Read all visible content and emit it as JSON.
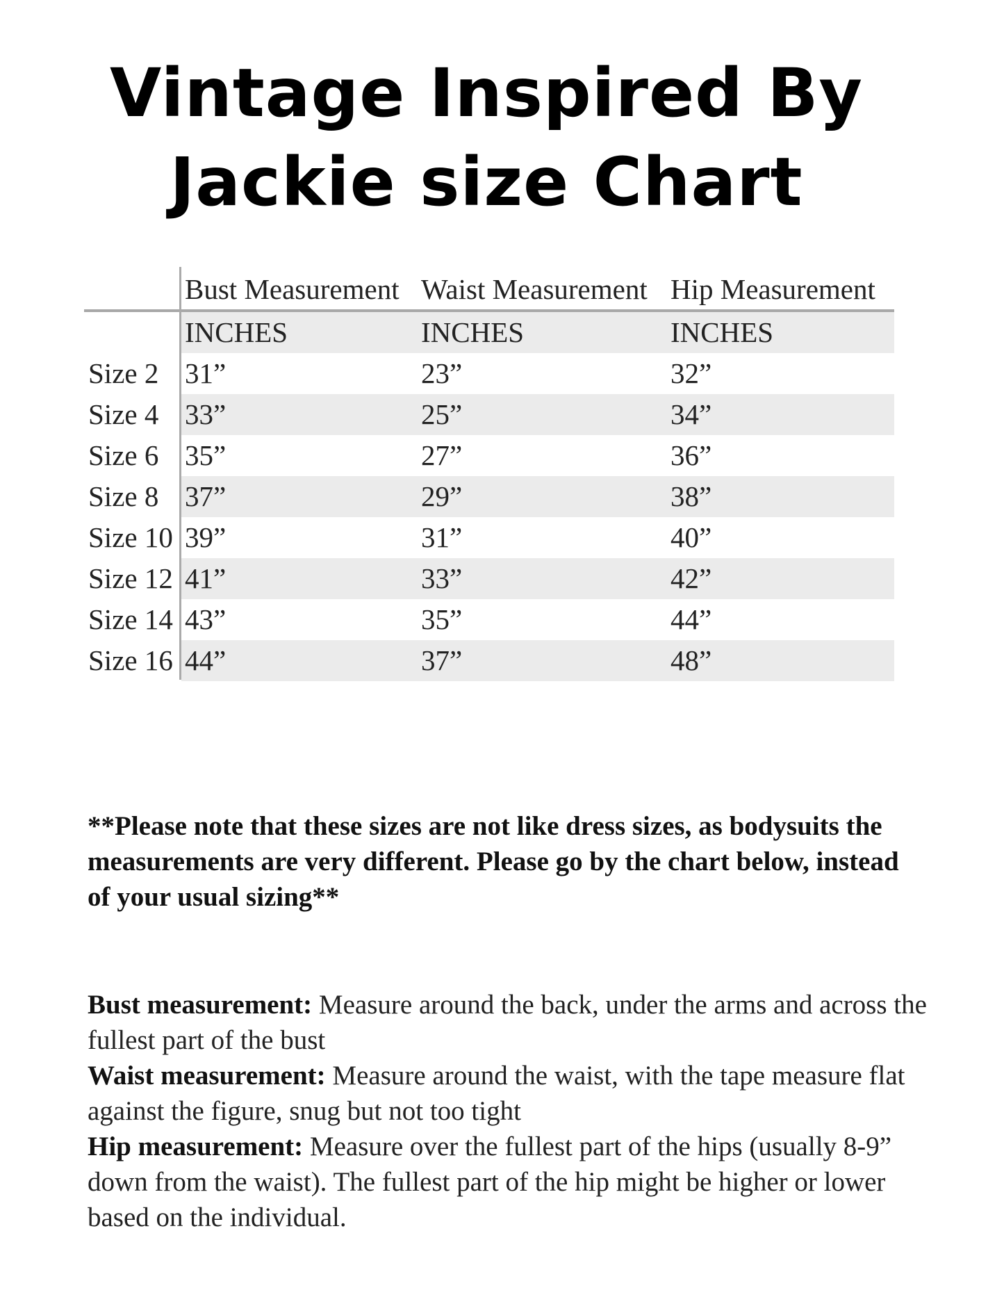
{
  "title": {
    "line1": "Vintage Inspired By",
    "line2": "Jackie size Chart"
  },
  "table": {
    "columns": [
      "Bust Measurement",
      "Waist Measurement",
      "Hip Measurement"
    ],
    "units": [
      "INCHES",
      "INCHES",
      "INCHES"
    ],
    "rows": [
      {
        "size": "Size 2",
        "bust": "31”",
        "waist": "23”",
        "hip": "32”"
      },
      {
        "size": "Size 4",
        "bust": "33”",
        "waist": "25”",
        "hip": "34”"
      },
      {
        "size": "Size 6",
        "bust": "35”",
        "waist": "27”",
        "hip": "36”"
      },
      {
        "size": "Size 8",
        "bust": "37”",
        "waist": "29”",
        "hip": "38”"
      },
      {
        "size": "Size 10",
        "bust": "39”",
        "waist": "31”",
        "hip": "40”"
      },
      {
        "size": "Size 12",
        "bust": "41”",
        "waist": "33”",
        "hip": "42”"
      },
      {
        "size": "Size 14",
        "bust": "43”",
        "waist": "35”",
        "hip": "44”"
      },
      {
        "size": "Size 16",
        "bust": "44”",
        "waist": "37”",
        "hip": "48”"
      }
    ]
  },
  "note": "**Please note that these sizes are not like dress sizes, as bodysuits the measurements are very different. Please go by the chart below, instead of your usual sizing**",
  "definitions": [
    {
      "label": "Bust measurement:",
      "text": " Measure around the back, under the arms and across the fullest part of the bust"
    },
    {
      "label": "Waist measurement:",
      "text": " Measure around the waist, with the tape measure flat against the figure, snug but not too tight"
    },
    {
      "label": "Hip measurement:",
      "text": " Measure over the fullest part of the hips (usually 8-9” down from the waist). The fullest part of the hip might be higher or lower based on the individual."
    }
  ]
}
